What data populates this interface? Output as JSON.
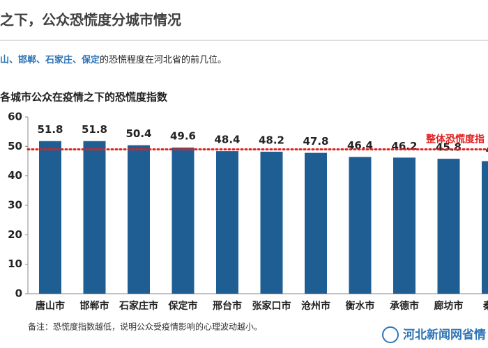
{
  "header": {
    "title": "之下，公众恐慌度分城市情况"
  },
  "subtitle": {
    "highlight": "山、邯郸、石家庄、保定",
    "rest": "的恐慌程度在河北省的前几位。"
  },
  "chart_data": {
    "type": "bar",
    "title": "各城市公众在疫情之下的恐慌度指数",
    "categories": [
      "唐山市",
      "邯郸市",
      "石家庄市",
      "保定市",
      "邢台市",
      "张家口市",
      "沧州市",
      "衡水市",
      "承德市",
      "廊坊市",
      "秦皇"
    ],
    "values": [
      51.8,
      51.8,
      50.4,
      49.6,
      48.4,
      48.2,
      47.8,
      46.4,
      46.2,
      45.8,
      45
    ],
    "color": "#1f5e93",
    "ylim": [
      0,
      60
    ],
    "yticks": [
      0,
      10,
      20,
      30,
      40,
      50,
      60
    ],
    "reference_value": 49,
    "reference_label": "整体恐慌度指",
    "reference_color": "#e02020"
  },
  "footnote": "备注：恐慌度指数越低，说明公众受疫情影响的心理波动越小。",
  "logo": "河北新闻网省情"
}
